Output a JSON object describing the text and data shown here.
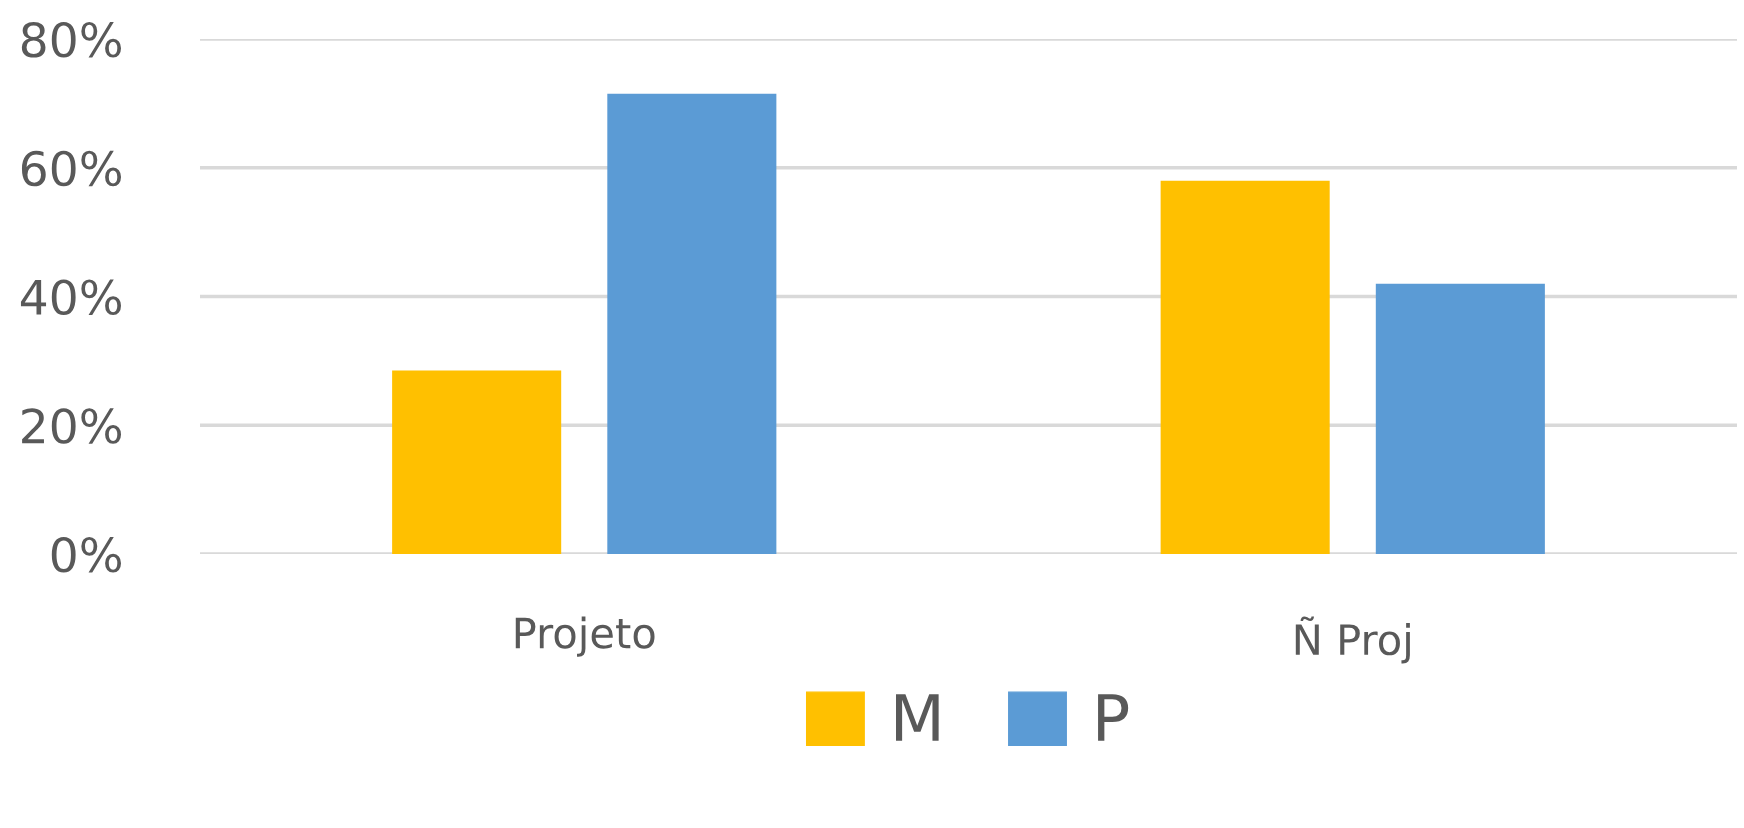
{
  "chart_data": {
    "type": "bar",
    "categories": [
      "Projeto",
      "Ñ Proj"
    ],
    "series": [
      {
        "name": "M",
        "color": "#ffc000",
        "values": [
          28.5,
          58
        ]
      },
      {
        "name": "P",
        "color": "#5b9bd5",
        "values": [
          71.5,
          42
        ]
      }
    ],
    "ylim": [
      0,
      80
    ],
    "yticks": [
      {
        "value": 0,
        "label": "0%"
      },
      {
        "value": 20,
        "label": "20%"
      },
      {
        "value": 40,
        "label": "40%"
      },
      {
        "value": 60,
        "label": "60%"
      },
      {
        "value": 80,
        "label": "80%"
      }
    ],
    "grid": "y",
    "legend": "bottom"
  }
}
